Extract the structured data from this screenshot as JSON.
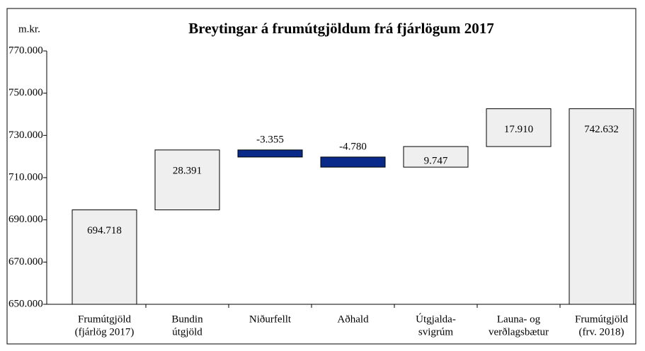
{
  "chart_data": {
    "type": "waterfall",
    "title": "Breytingar á frumútgjöldum frá fjárlögum 2017",
    "unit_label": "m.kr.",
    "categories": [
      [
        "Frumútgjöld",
        "(fjárlög 2017)"
      ],
      [
        "Bundin",
        "útgjöld"
      ],
      [
        "Niðurfellt"
      ],
      [
        "Aðhald"
      ],
      [
        "Útgjalda-",
        "svigrúm"
      ],
      [
        "Launa- og",
        "verðlagsbætur"
      ],
      [
        "Frumútgjöld",
        "(frv. 2018)"
      ]
    ],
    "values": [
      694718,
      28391,
      -3355,
      -4780,
      9747,
      17910,
      742632
    ],
    "value_labels": [
      "694.718",
      "28.391",
      "-3.355",
      "-4.780",
      "9.747",
      "17.910",
      "742.632"
    ],
    "colors": {
      "total": "#efefef",
      "increase": "#efefef",
      "decrease": "#0a2a8a"
    },
    "ylim": [
      650000,
      770000
    ],
    "yticks": [
      {
        "value": 650000,
        "label": "650.000"
      },
      {
        "value": 670000,
        "label": "670.000"
      },
      {
        "value": 690000,
        "label": "690.000"
      },
      {
        "value": 710000,
        "label": "710.000"
      },
      {
        "value": 730000,
        "label": "730.000"
      },
      {
        "value": 750000,
        "label": "750.000"
      },
      {
        "value": 770000,
        "label": "770.000"
      }
    ]
  }
}
